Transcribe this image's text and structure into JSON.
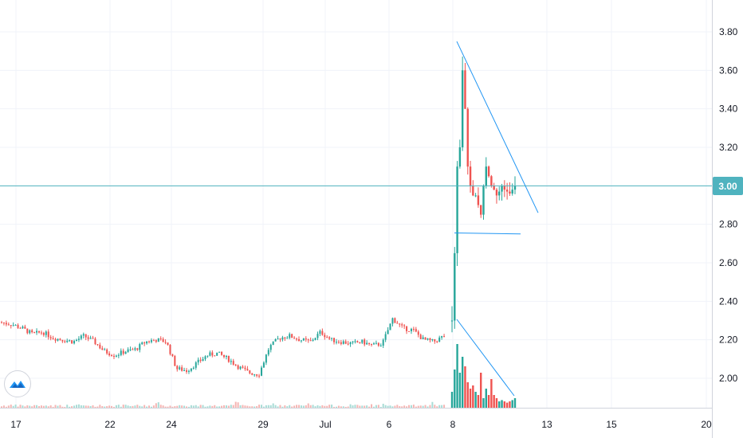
{
  "colors": {
    "up": "#26a69a",
    "down": "#ef5350",
    "last_price_line": "#4fb3bf",
    "trendline": "#2196f3",
    "grid": "#f0f3fa",
    "axis_text": "#131722"
  },
  "icons": {
    "logo": "tradingview-cloud-icon"
  },
  "chart_data": {
    "type": "candlestick",
    "title": "",
    "grid": true,
    "y_axis": {
      "position": "right",
      "range": [
        1.88,
        3.94
      ],
      "ticks": [
        "3.80",
        "3.60",
        "3.40",
        "3.20",
        "3.00",
        "2.80",
        "2.60",
        "2.40",
        "2.20",
        "2.00"
      ]
    },
    "x_axis": {
      "ticks": [
        "17",
        "22",
        "24",
        "29",
        "Jul",
        "6",
        "8",
        "13",
        "15",
        "20"
      ]
    },
    "last_price": "3.00",
    "price_path_before_breakout": [
      2.29,
      2.28,
      2.26,
      2.23,
      2.24,
      2.21,
      2.2,
      2.19,
      2.22,
      2.19,
      2.14,
      2.12,
      2.14,
      2.15,
      2.19,
      2.2,
      2.19,
      2.05,
      2.04,
      2.08,
      2.12,
      2.13,
      2.1,
      2.06,
      2.03,
      2.02,
      2.16,
      2.21,
      2.22,
      2.2,
      2.19,
      2.24,
      2.2,
      2.19,
      2.18,
      2.19,
      2.17,
      2.18,
      2.31,
      2.26,
      2.25,
      2.2,
      2.19,
      2.22
    ],
    "price_path_after_breakout": [
      2.3,
      2.65,
      3.1,
      3.2,
      3.6,
      3.4,
      3.1,
      3.0,
      2.95,
      2.95,
      2.9,
      2.85,
      3.0,
      3.1,
      3.05,
      3.0,
      2.98,
      2.95,
      2.97,
      3.0,
      2.98,
      2.97,
      2.96,
      2.98,
      3.0
    ],
    "volume_profile_after_breakout": [
      0.25,
      0.6,
      1.0,
      0.55,
      0.8,
      0.65,
      0.4,
      0.3,
      0.35,
      0.25,
      0.2,
      0.55,
      0.15,
      0.3,
      0.2,
      0.45,
      0.2,
      0.15,
      0.1,
      0.12,
      0.1,
      0.08,
      0.1,
      0.12,
      0.15
    ],
    "trendlines": [
      {
        "name": "price-upper-trendline",
        "x": [
          "8 Jul",
          "12 Jul"
        ],
        "y": [
          3.75,
          2.86
        ]
      },
      {
        "name": "price-support-line",
        "x": [
          "8 Jul",
          "11 Jul"
        ],
        "y": [
          2.755,
          2.75
        ]
      }
    ]
  }
}
